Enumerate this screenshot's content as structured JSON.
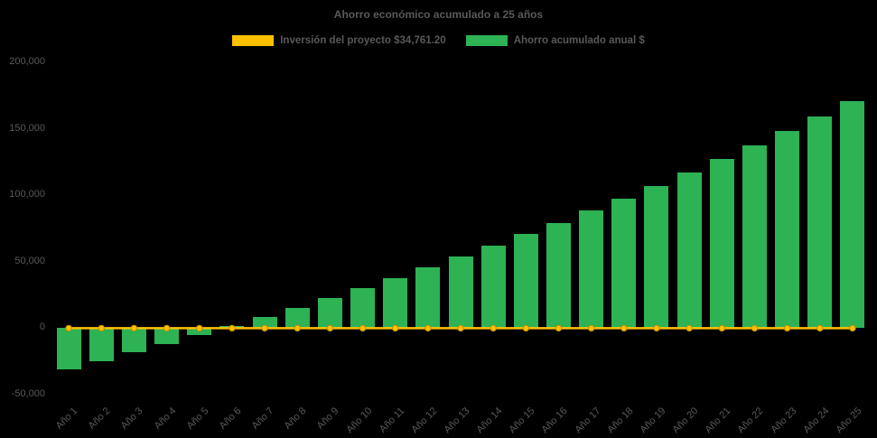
{
  "chart_data": {
    "type": "bar",
    "title": "Ahorro económico acumulado a 25 años",
    "categories": [
      "Año 1",
      "Año 2",
      "Año 3",
      "Año 4",
      "Año 5",
      "Año 6",
      "Año 7",
      "Año 8",
      "Año 9",
      "Año 10",
      "Año 11",
      "Año 12",
      "Año 13",
      "Año 14",
      "Año 15",
      "Año 16",
      "Año 17",
      "Año 18",
      "Año 19",
      "Año 20",
      "Año 21",
      "Año 22",
      "Año 23",
      "Año 24",
      "Año 25"
    ],
    "series": [
      {
        "name": "Inversión del proyecto $34,761.20",
        "type": "line",
        "color": "#FFC000",
        "marker_border": "#BF9000",
        "values": [
          0,
          0,
          0,
          0,
          0,
          0,
          0,
          0,
          0,
          0,
          0,
          0,
          0,
          0,
          0,
          0,
          0,
          0,
          0,
          0,
          0,
          0,
          0,
          0,
          0
        ]
      },
      {
        "name": "Ahorro acumulado anual $",
        "type": "bar",
        "color": "#2DB254",
        "values": [
          -30800,
          -24700,
          -18400,
          -12000,
          -5400,
          1300,
          8200,
          15300,
          22600,
          30100,
          37800,
          45700,
          53800,
          62100,
          70600,
          79400,
          88400,
          97600,
          107100,
          116900,
          127000,
          137400,
          148100,
          159100,
          170500
        ]
      }
    ],
    "ylim": [
      -50000,
      200000
    ],
    "yticks": [
      -50000,
      0,
      50000,
      100000,
      150000,
      200000
    ],
    "ytick_labels": [
      "-50,000",
      "0",
      "50,000",
      "100,000",
      "150,000",
      "200,000"
    ],
    "grid": false,
    "legend_position": "top",
    "text_color": "#595959",
    "background_color": "#000000"
  }
}
